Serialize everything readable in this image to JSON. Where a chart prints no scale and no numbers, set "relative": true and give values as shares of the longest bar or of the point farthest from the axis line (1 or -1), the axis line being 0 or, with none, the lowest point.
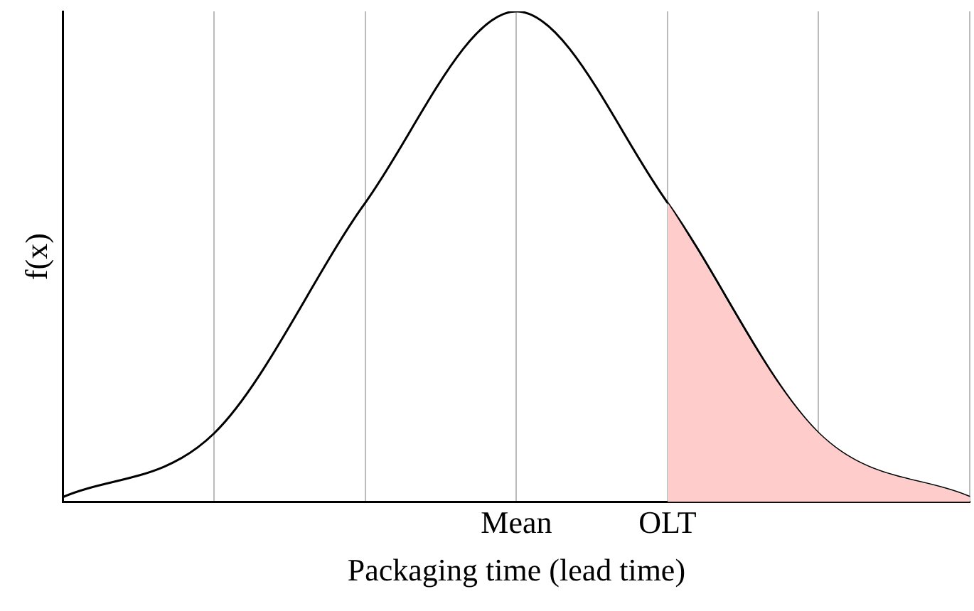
{
  "chart_data": {
    "type": "line",
    "relative": true,
    "xlabel": "Packaging time (lead time)",
    "ylabel": "f(x)",
    "categories": [
      null,
      null,
      null,
      "Mean",
      "OLT",
      null,
      null
    ],
    "grid": "x",
    "legend": false,
    "tick_labels": "x",
    "marker": "none",
    "line_style": "solid",
    "series": [
      {
        "type": "area",
        "color": "#ffcccc",
        "values": [
          null,
          null,
          null,
          null,
          0.61,
          0.14,
          0.01
        ]
      },
      {
        "color": "#000000",
        "values": [
          0.01,
          0.14,
          0.61,
          1,
          0.61,
          0.14,
          0.01
        ]
      }
    ]
  }
}
